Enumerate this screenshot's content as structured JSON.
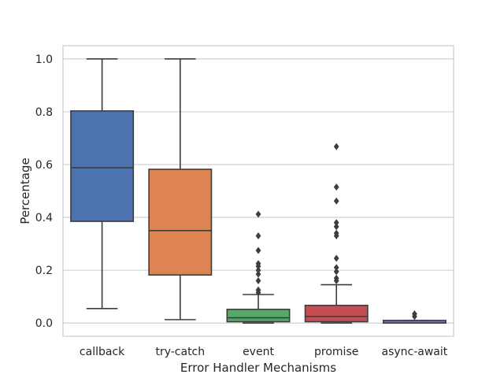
{
  "chart_data": {
    "type": "box",
    "xlabel": "Error Handler Mechanisms",
    "ylabel": "Percentage",
    "ylim": [
      -0.05,
      1.05
    ],
    "yticks": [
      0.0,
      0.2,
      0.4,
      0.6,
      0.8,
      1.0
    ],
    "ytick_labels": [
      "0.0",
      "0.2",
      "0.4",
      "0.6",
      "0.8",
      "1.0"
    ],
    "grid": true,
    "categories": [
      "callback",
      "try-catch",
      "event",
      "promise",
      "async-await"
    ],
    "boxes": [
      {
        "category": "callback",
        "color": "#4c72b0",
        "min": 0.055,
        "q1": 0.385,
        "median": 0.588,
        "q3": 0.803,
        "max": 1.0,
        "outliers": []
      },
      {
        "category": "try-catch",
        "color": "#dd8452",
        "min": 0.013,
        "q1": 0.182,
        "median": 0.35,
        "q3": 0.582,
        "max": 1.0,
        "outliers": []
      },
      {
        "category": "event",
        "color": "#55a868",
        "min": 0.0,
        "q1": 0.005,
        "median": 0.02,
        "q3": 0.052,
        "max": 0.108,
        "outliers": [
          0.412,
          0.33,
          0.275,
          0.225,
          0.215,
          0.2,
          0.185,
          0.16,
          0.125,
          0.115
        ]
      },
      {
        "category": "promise",
        "color": "#c44e52",
        "min": 0.0,
        "q1": 0.005,
        "median": 0.025,
        "q3": 0.067,
        "max": 0.145,
        "outliers": [
          0.668,
          0.515,
          0.462,
          0.38,
          0.365,
          0.34,
          0.33,
          0.245,
          0.21,
          0.195,
          0.17,
          0.16
        ]
      },
      {
        "category": "async-await",
        "color": "#8172b3",
        "min": 0.0,
        "q1": 0.0,
        "median": 0.0,
        "q3": 0.01,
        "max": 0.01,
        "outliers": [
          0.035,
          0.025
        ]
      }
    ]
  }
}
